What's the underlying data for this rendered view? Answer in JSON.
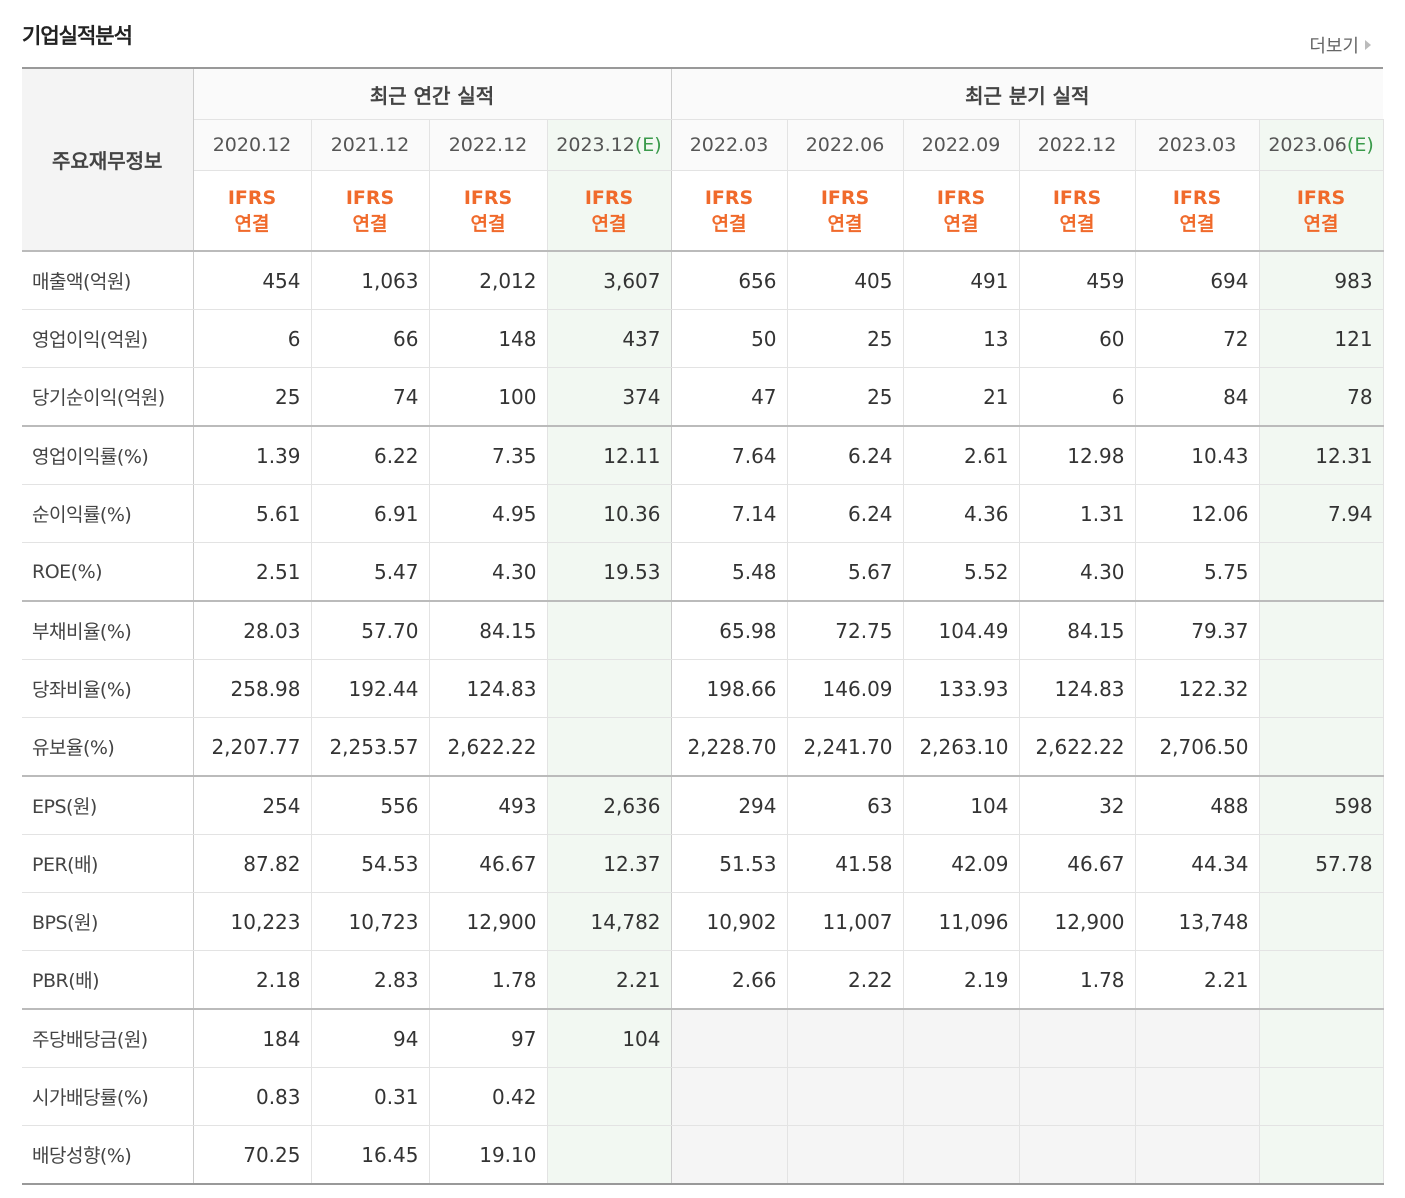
{
  "section_title": "기업실적분석",
  "more_label": "더보기",
  "corner_label": "주요재무정보",
  "annual_header": "최근 연간 실적",
  "quarter_header": "최근 분기 실적",
  "periods": [
    {
      "label": "2020.12",
      "est": ""
    },
    {
      "label": "2021.12",
      "est": ""
    },
    {
      "label": "2022.12",
      "est": ""
    },
    {
      "label": "2023.12",
      "est": "(E)"
    },
    {
      "label": "2022.03",
      "est": ""
    },
    {
      "label": "2022.06",
      "est": ""
    },
    {
      "label": "2022.09",
      "est": ""
    },
    {
      "label": "2022.12",
      "est": ""
    },
    {
      "label": "2023.03",
      "est": ""
    },
    {
      "label": "2023.06",
      "est": "(E)"
    }
  ],
  "basis_line1": "IFRS",
  "basis_line2": "연결",
  "rows": [
    {
      "label": "매출액(억원)",
      "values": [
        "454",
        "1,063",
        "2,012",
        "3,607",
        "656",
        "405",
        "491",
        "459",
        "694",
        "983"
      ]
    },
    {
      "label": "영업이익(억원)",
      "values": [
        "6",
        "66",
        "148",
        "437",
        "50",
        "25",
        "13",
        "60",
        "72",
        "121"
      ]
    },
    {
      "label": "당기순이익(억원)",
      "values": [
        "25",
        "74",
        "100",
        "374",
        "47",
        "25",
        "21",
        "6",
        "84",
        "78"
      ]
    },
    {
      "label": "영업이익률(%)",
      "values": [
        "1.39",
        "6.22",
        "7.35",
        "12.11",
        "7.64",
        "6.24",
        "2.61",
        "12.98",
        "10.43",
        "12.31"
      ]
    },
    {
      "label": "순이익률(%)",
      "values": [
        "5.61",
        "6.91",
        "4.95",
        "10.36",
        "7.14",
        "6.24",
        "4.36",
        "1.31",
        "12.06",
        "7.94"
      ]
    },
    {
      "label": "ROE(%)",
      "values": [
        "2.51",
        "5.47",
        "4.30",
        "19.53",
        "5.48",
        "5.67",
        "5.52",
        "4.30",
        "5.75",
        ""
      ]
    },
    {
      "label": "부채비율(%)",
      "values": [
        "28.03",
        "57.70",
        "84.15",
        "",
        "65.98",
        "72.75",
        "104.49",
        "84.15",
        "79.37",
        ""
      ]
    },
    {
      "label": "당좌비율(%)",
      "values": [
        "258.98",
        "192.44",
        "124.83",
        "",
        "198.66",
        "146.09",
        "133.93",
        "124.83",
        "122.32",
        ""
      ]
    },
    {
      "label": "유보율(%)",
      "values": [
        "2,207.77",
        "2,253.57",
        "2,622.22",
        "",
        "2,228.70",
        "2,241.70",
        "2,263.10",
        "2,622.22",
        "2,706.50",
        ""
      ]
    },
    {
      "label": "EPS(원)",
      "values": [
        "254",
        "556",
        "493",
        "2,636",
        "294",
        "63",
        "104",
        "32",
        "488",
        "598"
      ]
    },
    {
      "label": "PER(배)",
      "values": [
        "87.82",
        "54.53",
        "46.67",
        "12.37",
        "51.53",
        "41.58",
        "42.09",
        "46.67",
        "44.34",
        "57.78"
      ]
    },
    {
      "label": "BPS(원)",
      "values": [
        "10,223",
        "10,723",
        "12,900",
        "14,782",
        "10,902",
        "11,007",
        "11,096",
        "12,900",
        "13,748",
        ""
      ]
    },
    {
      "label": "PBR(배)",
      "values": [
        "2.18",
        "2.83",
        "1.78",
        "2.21",
        "2.66",
        "2.22",
        "2.19",
        "1.78",
        "2.21",
        ""
      ]
    },
    {
      "label": "주당배당금(원)",
      "values": [
        "184",
        "94",
        "97",
        "104",
        "",
        "",
        "",
        "",
        "",
        ""
      ]
    },
    {
      "label": "시가배당률(%)",
      "values": [
        "0.83",
        "0.31",
        "0.42",
        "",
        "",
        "",
        "",
        "",
        "",
        ""
      ]
    },
    {
      "label": "배당성향(%)",
      "values": [
        "70.25",
        "16.45",
        "19.10",
        "",
        "",
        "",
        "",
        "",
        "",
        ""
      ]
    }
  ]
}
